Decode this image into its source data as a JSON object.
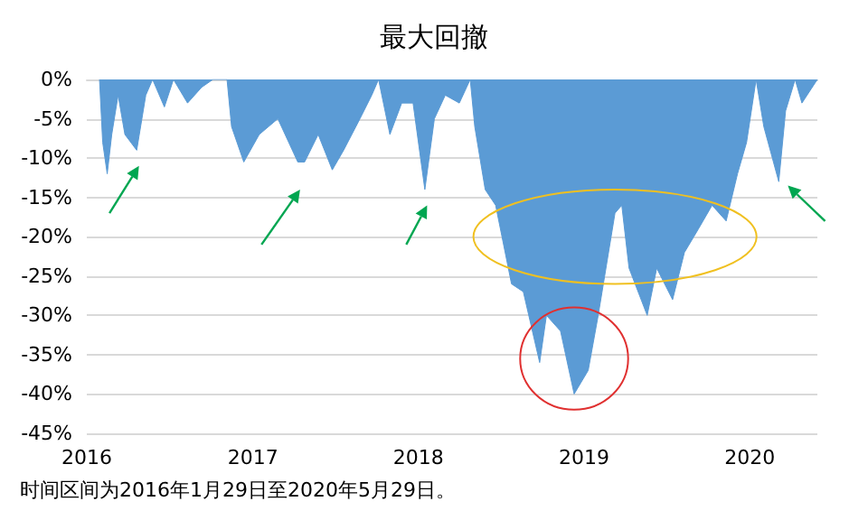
{
  "chart_data": {
    "type": "area",
    "title": "最大回撤",
    "annotations": [
      "时间区间为2016年1月29日至2020年5月29日。"
    ],
    "x": [
      "2016-01-29",
      "2016-02-05",
      "2016-02-15",
      "2016-02-25",
      "2016-03-10",
      "2016-03-25",
      "2016-04-20",
      "2016-05-10",
      "2016-05-25",
      "2016-06-20",
      "2016-07-10",
      "2016-08-10",
      "2016-09-10",
      "2016-10-05",
      "2016-11-05",
      "2016-11-15",
      "2016-12-12",
      "2017-01-15",
      "2017-02-25",
      "2017-04-10",
      "2017-04-25",
      "2017-05-25",
      "2017-06-25",
      "2017-07-20",
      "2017-08-25",
      "2017-09-20",
      "2017-10-05",
      "2017-10-30",
      "2017-11-25",
      "2017-12-20",
      "2018-01-15",
      "2018-02-05",
      "2018-03-01",
      "2018-04-01",
      "2018-04-25",
      "2018-05-05",
      "2018-05-28",
      "2018-06-20",
      "2018-07-25",
      "2018-08-20",
      "2018-09-25",
      "2018-10-10",
      "2018-11-10",
      "2018-12-10",
      "2019-01-10",
      "2019-02-01",
      "2019-03-10",
      "2019-03-25",
      "2019-04-10",
      "2019-05-20",
      "2019-06-10",
      "2019-07-15",
      "2019-08-10",
      "2019-09-10",
      "2019-10-10",
      "2019-11-10",
      "2019-12-05",
      "2019-12-25",
      "2020-01-15",
      "2020-02-01",
      "2020-03-05",
      "2020-03-20",
      "2020-04-10",
      "2020-04-25",
      "2020-05-29"
    ],
    "series": [
      {
        "color": "#5b9bd5",
        "values": [
          0,
          -8,
          -12,
          -7,
          -2,
          -7,
          -9,
          -2,
          0,
          -3.5,
          0,
          -3,
          -1,
          0,
          0,
          -6,
          -10.5,
          -7,
          -5,
          -10.5,
          -10.5,
          -7,
          -11.5,
          -9,
          -5,
          -2,
          0,
          -7,
          -3,
          -3,
          -14,
          -5,
          -2,
          -3,
          0,
          -6,
          -14,
          -16,
          -26,
          -27,
          -36,
          -30,
          -32,
          -40,
          -37,
          -30,
          -17,
          -16,
          -24,
          -30,
          -24,
          -28,
          -22,
          -19,
          -16,
          -18,
          -12,
          -8,
          0,
          -6,
          -13,
          -4,
          0,
          -3,
          0
        ]
      }
    ],
    "xlim": [
      "2016-01-01",
      "2020-05-29"
    ],
    "xticks": [
      {
        "value": "2016-01-01",
        "label": "2016"
      },
      {
        "value": "2017-01-01",
        "label": "2017"
      },
      {
        "value": "2018-01-01",
        "label": "2018"
      },
      {
        "value": "2019-01-01",
        "label": "2019"
      },
      {
        "value": "2020-01-01",
        "label": "2020"
      }
    ],
    "ylim": [
      -45,
      0
    ],
    "yticks": [
      {
        "value": 0,
        "label": "0%"
      },
      {
        "value": -5,
        "label": "-5%"
      },
      {
        "value": -10,
        "label": "-10%"
      },
      {
        "value": -15,
        "label": "-15%"
      },
      {
        "value": -20,
        "label": "-20%"
      },
      {
        "value": -25,
        "label": "-25%"
      },
      {
        "value": -30,
        "label": "-30%"
      },
      {
        "value": -35,
        "label": "-35%"
      },
      {
        "value": -40,
        "label": "-40%"
      },
      {
        "value": -45,
        "label": "-45%"
      }
    ],
    "grid": "y"
  }
}
